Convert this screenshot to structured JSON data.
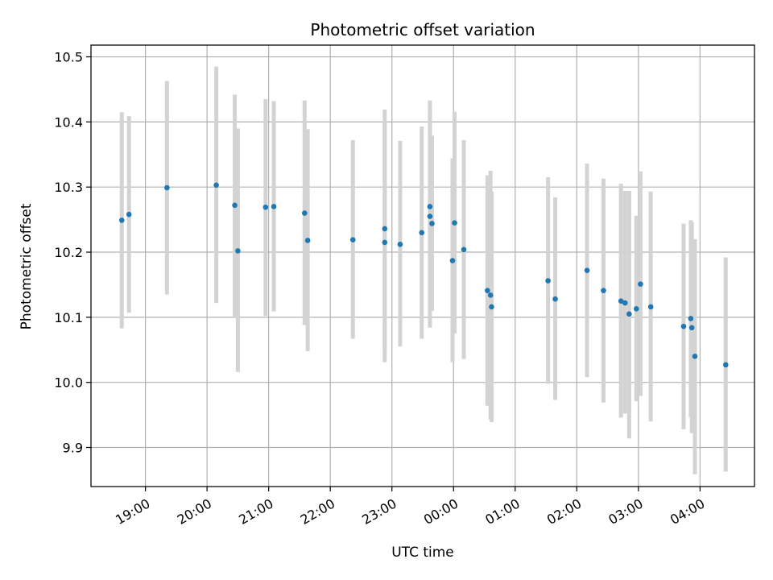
{
  "chart_data": {
    "type": "scatter",
    "title": "Photometric offset variation",
    "xlabel": "UTC time",
    "ylabel": "Photometric offset",
    "xlim": [
      "18:07",
      "04:53 next day"
    ],
    "ylim": [
      9.84,
      10.518
    ],
    "grid": true,
    "colors": {
      "point": "#1f77b4",
      "errorbar": "#d3d3d3",
      "grid": "#b0b0b0"
    },
    "xticks": [
      "19:00",
      "20:00",
      "21:00",
      "22:00",
      "23:00",
      "00:00",
      "01:00",
      "02:00",
      "03:00",
      "04:00"
    ],
    "yticks": [
      "9.9",
      "10.0",
      "10.1",
      "10.2",
      "10.3",
      "10.4",
      "10.5"
    ],
    "x_unit": "UTC clock time; times 00:00–04:53 fall on the following day",
    "points": [
      {
        "x": "18:37",
        "y": 10.249,
        "err_low": 10.083,
        "err_high": 10.415
      },
      {
        "x": "18:44",
        "y": 10.258,
        "err_low": 10.107,
        "err_high": 10.409
      },
      {
        "x": "19:21",
        "y": 10.299,
        "err_low": 10.135,
        "err_high": 10.463
      },
      {
        "x": "20:09",
        "y": 10.303,
        "err_low": 10.122,
        "err_high": 10.485
      },
      {
        "x": "20:27",
        "y": 10.272,
        "err_low": 10.1,
        "err_high": 10.442
      },
      {
        "x": "20:30",
        "y": 10.202,
        "err_low": 10.016,
        "err_high": 10.39
      },
      {
        "x": "20:57",
        "y": 10.269,
        "err_low": 10.102,
        "err_high": 10.435
      },
      {
        "x": "21:05",
        "y": 10.27,
        "err_low": 10.109,
        "err_high": 10.432
      },
      {
        "x": "21:35",
        "y": 10.26,
        "err_low": 10.088,
        "err_high": 10.433
      },
      {
        "x": "21:38",
        "y": 10.218,
        "err_low": 10.048,
        "err_high": 10.389
      },
      {
        "x": "22:22",
        "y": 10.219,
        "err_low": 10.067,
        "err_high": 10.372
      },
      {
        "x": "22:53",
        "y": 10.236,
        "err_low": 10.052,
        "err_high": 10.419
      },
      {
        "x": "22:53",
        "y": 10.215,
        "err_low": 10.031,
        "err_high": 10.4
      },
      {
        "x": "23:08",
        "y": 10.212,
        "err_low": 10.055,
        "err_high": 10.371
      },
      {
        "x": "23:29",
        "y": 10.23,
        "err_low": 10.067,
        "err_high": 10.393
      },
      {
        "x": "23:37",
        "y": 10.27,
        "err_low": 10.112,
        "err_high": 10.428
      },
      {
        "x": "23:37",
        "y": 10.255,
        "err_low": 10.084,
        "err_high": 10.433
      },
      {
        "x": "23:39",
        "y": 10.244,
        "err_low": 10.11,
        "err_high": 10.379
      },
      {
        "x": "23:59",
        "y": 10.187,
        "err_low": 10.031,
        "err_high": 10.344
      },
      {
        "x": "00:01",
        "y": 10.245,
        "err_low": 10.075,
        "err_high": 10.416
      },
      {
        "x": "00:10",
        "y": 10.204,
        "err_low": 10.036,
        "err_high": 10.372
      },
      {
        "x": "00:33",
        "y": 10.141,
        "err_low": 9.964,
        "err_high": 10.318
      },
      {
        "x": "00:36",
        "y": 10.134,
        "err_low": 9.943,
        "err_high": 10.325
      },
      {
        "x": "00:37",
        "y": 10.116,
        "err_low": 9.939,
        "err_high": 10.293
      },
      {
        "x": "01:32",
        "y": 10.156,
        "err_low": 9.998,
        "err_high": 10.315
      },
      {
        "x": "01:39",
        "y": 10.128,
        "err_low": 9.973,
        "err_high": 10.284
      },
      {
        "x": "02:10",
        "y": 10.172,
        "err_low": 10.008,
        "err_high": 10.336
      },
      {
        "x": "02:26",
        "y": 10.141,
        "err_low": 9.969,
        "err_high": 10.313
      },
      {
        "x": "02:43",
        "y": 10.125,
        "err_low": 9.946,
        "err_high": 10.305
      },
      {
        "x": "02:47",
        "y": 10.122,
        "err_low": 9.952,
        "err_high": 10.294
      },
      {
        "x": "02:51",
        "y": 10.105,
        "err_low": 9.914,
        "err_high": 10.294
      },
      {
        "x": "02:58",
        "y": 10.113,
        "err_low": 9.971,
        "err_high": 10.256
      },
      {
        "x": "03:02",
        "y": 10.151,
        "err_low": 9.979,
        "err_high": 10.324
      },
      {
        "x": "03:12",
        "y": 10.116,
        "err_low": 9.94,
        "err_high": 10.293
      },
      {
        "x": "03:44",
        "y": 10.086,
        "err_low": 9.928,
        "err_high": 10.244
      },
      {
        "x": "03:51",
        "y": 10.098,
        "err_low": 9.947,
        "err_high": 10.249
      },
      {
        "x": "03:52",
        "y": 10.084,
        "err_low": 9.922,
        "err_high": 10.246
      },
      {
        "x": "03:55",
        "y": 10.04,
        "err_low": 9.859,
        "err_high": 10.22
      },
      {
        "x": "04:25",
        "y": 10.027,
        "err_low": 9.863,
        "err_high": 10.192
      }
    ]
  }
}
